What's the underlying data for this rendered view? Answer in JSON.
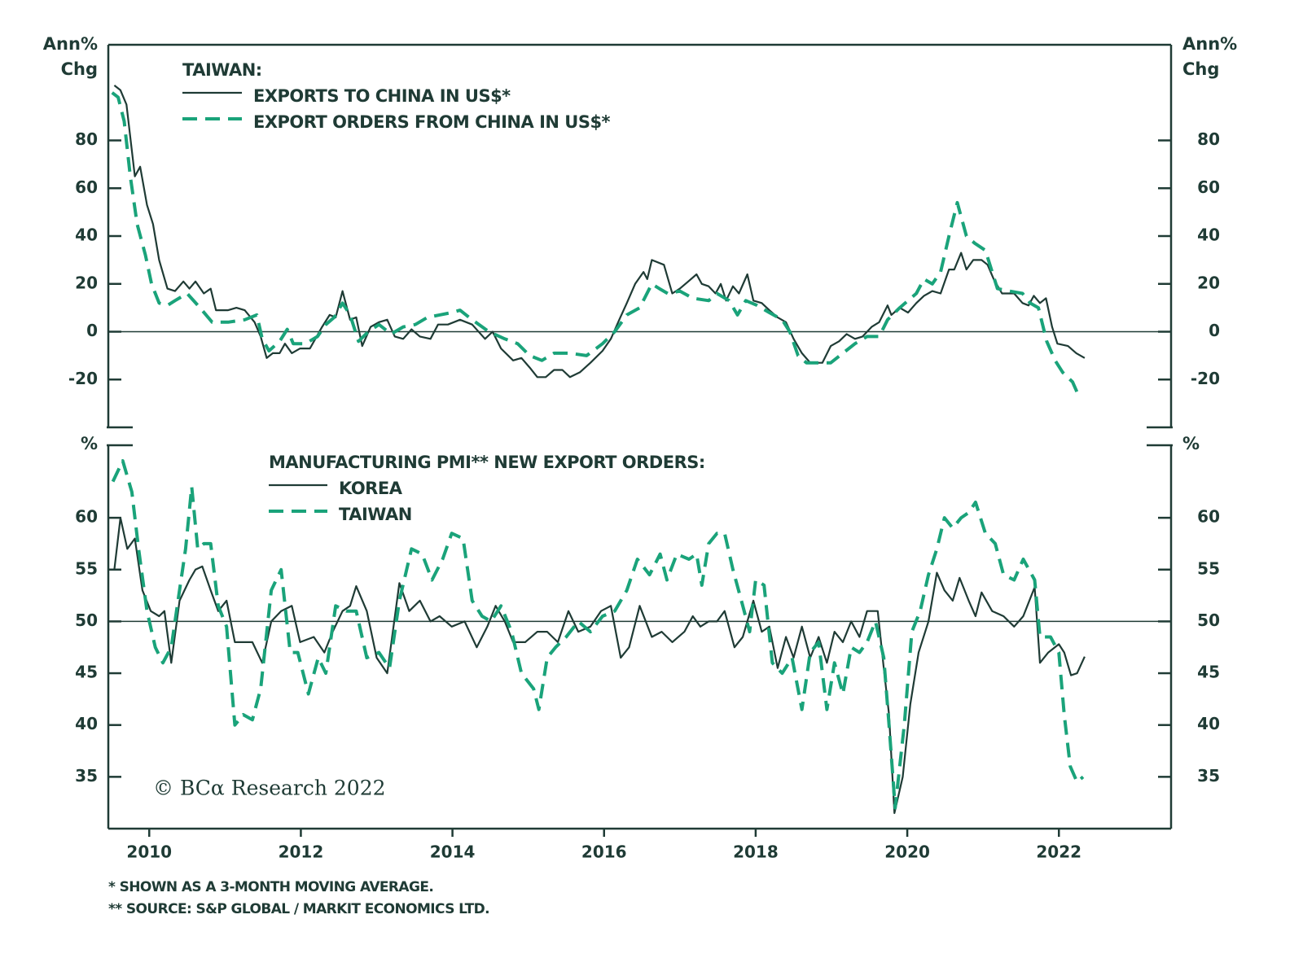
{
  "chart_data": [
    {
      "type": "line",
      "y_label_lines": [
        "Ann%",
        "Chg"
      ],
      "legend_title": "TAIWAN:",
      "xlim": [
        2009.46,
        2023.48
      ],
      "ylim": [
        -40,
        120
      ],
      "yticks": [
        -20,
        0,
        20,
        40,
        60,
        80
      ],
      "reference_line": 0,
      "series": [
        {
          "name": "EXPORTS TO CHINA IN US$*",
          "color": "#1f3b35",
          "dashed": false,
          "x": [
            2009.54,
            2009.62,
            2009.7,
            2009.81,
            2009.88,
            2009.97,
            2010.05,
            2010.13,
            2010.24,
            2010.34,
            2010.45,
            2010.53,
            2010.61,
            2010.72,
            2010.81,
            2010.88,
            2011.04,
            2011.15,
            2011.26,
            2011.39,
            2011.47,
            2011.55,
            2011.63,
            2011.72,
            2011.79,
            2011.88,
            2011.99,
            2012.12,
            2012.28,
            2012.38,
            2012.46,
            2012.55,
            2012.65,
            2012.73,
            2012.81,
            2012.92,
            2013.03,
            2013.14,
            2013.24,
            2013.35,
            2013.46,
            2013.57,
            2013.71,
            2013.81,
            2013.94,
            2014.1,
            2014.26,
            2014.43,
            2014.53,
            2014.64,
            2014.8,
            2014.91,
            2015.02,
            2015.12,
            2015.23,
            2015.34,
            2015.45,
            2015.55,
            2015.68,
            2015.82,
            2015.98,
            2016.09,
            2016.2,
            2016.3,
            2016.41,
            2016.52,
            2016.57,
            2016.63,
            2016.79,
            2016.9,
            2017.0,
            2017.11,
            2017.22,
            2017.29,
            2017.38,
            2017.47,
            2017.54,
            2017.61,
            2017.7,
            2017.78,
            2017.89,
            2017.97,
            2018.08,
            2018.18,
            2018.29,
            2018.4,
            2018.5,
            2018.61,
            2018.72,
            2018.88,
            2018.99,
            2019.1,
            2019.2,
            2019.31,
            2019.41,
            2019.53,
            2019.63,
            2019.74,
            2019.79,
            2019.9,
            2020.01,
            2020.12,
            2020.22,
            2020.33,
            2020.44,
            2020.55,
            2020.62,
            2020.71,
            2020.78,
            2020.87,
            2020.98,
            2021.06,
            2021.14,
            2021.25,
            2021.41,
            2021.52,
            2021.6,
            2021.67,
            2021.75,
            2021.83,
            2021.91,
            2021.98,
            2022.12,
            2022.23,
            2022.34
          ],
          "values": [
            103,
            101,
            95,
            65,
            69,
            53,
            45,
            30,
            18,
            17,
            21,
            18,
            21,
            16,
            18,
            9,
            9,
            10,
            9,
            4,
            -2,
            -11,
            -9,
            -9,
            -5,
            -9,
            -7,
            -7,
            2,
            7,
            6,
            17,
            5,
            6,
            -6,
            2,
            4,
            5,
            -2,
            -3,
            1,
            -2,
            -3,
            3,
            3,
            5,
            3,
            -3,
            0,
            -7,
            -12,
            -11,
            -15,
            -19,
            -19,
            -16,
            -16,
            -19,
            -17,
            -13,
            -8,
            -3,
            5,
            12,
            20,
            25,
            22,
            30,
            28,
            16,
            18,
            21,
            24,
            20,
            19,
            16,
            20,
            13,
            19,
            16,
            24,
            13,
            12,
            9,
            6,
            4,
            -3,
            -9,
            -13,
            -13,
            -6,
            -4,
            -1,
            -3,
            -2,
            2,
            4,
            11,
            7,
            10,
            8,
            12,
            15,
            17,
            16,
            26,
            26,
            33,
            26,
            30,
            30,
            28,
            22,
            16,
            16,
            12,
            11,
            15,
            12,
            14,
            2,
            -5,
            -6,
            -9,
            -11
          ]
        },
        {
          "name": "EXPORT ORDERS FROM CHINA IN US$*",
          "color": "#1aa37a",
          "dashed": true,
          "x": [
            2009.51,
            2009.59,
            2009.67,
            2009.75,
            2009.84,
            2009.95,
            2010.03,
            2010.13,
            2010.24,
            2010.34,
            2010.5,
            2010.67,
            2010.83,
            2011.04,
            2011.26,
            2011.42,
            2011.49,
            2011.58,
            2011.72,
            2011.82,
            2011.9,
            2012.06,
            2012.22,
            2012.33,
            2012.44,
            2012.55,
            2012.65,
            2012.76,
            2012.89,
            2013.03,
            2013.19,
            2013.35,
            2013.51,
            2013.67,
            2013.83,
            2013.99,
            2014.1,
            2014.26,
            2014.48,
            2014.69,
            2014.86,
            2015.02,
            2015.18,
            2015.34,
            2015.55,
            2015.77,
            2015.98,
            2016.14,
            2016.3,
            2016.47,
            2016.63,
            2016.73,
            2016.84,
            2017.0,
            2017.17,
            2017.38,
            2017.49,
            2017.65,
            2017.76,
            2017.87,
            2018.02,
            2018.18,
            2018.35,
            2018.45,
            2018.56,
            2018.67,
            2018.83,
            2018.99,
            2019.15,
            2019.31,
            2019.47,
            2019.63,
            2019.74,
            2019.9,
            2020.12,
            2020.22,
            2020.33,
            2020.44,
            2020.55,
            2020.66,
            2020.78,
            2020.89,
            2021.03,
            2021.19,
            2021.35,
            2021.52,
            2021.62,
            2021.73,
            2021.84,
            2021.95,
            2022.05,
            2022.18,
            2022.25
          ],
          "values": [
            100,
            98,
            88,
            65,
            45,
            32,
            20,
            12,
            11,
            13,
            16,
            10,
            4,
            4,
            5,
            7,
            -3,
            -8,
            -4,
            1,
            -5,
            -5,
            -2,
            3,
            6,
            12,
            7,
            -4,
            0,
            3,
            -1,
            2,
            3,
            6,
            7,
            8,
            9,
            5,
            0,
            -3,
            -5,
            -10,
            -12,
            -9,
            -9,
            -10,
            -5,
            0,
            7,
            10,
            20,
            18,
            16,
            17,
            14,
            13,
            16,
            13,
            7,
            13,
            11,
            8,
            5,
            0,
            -10,
            -13,
            -13,
            -13,
            -9,
            -5,
            -2,
            -2,
            5,
            10,
            16,
            22,
            20,
            25,
            40,
            54,
            40,
            37,
            34,
            18,
            17,
            16,
            12,
            10,
            -4,
            -12,
            -17,
            -21,
            -26
          ]
        }
      ]
    },
    {
      "type": "line",
      "y_label_lines": [
        "%"
      ],
      "legend_title": "MANUFACTURING PMI** NEW EXPORT ORDERS:",
      "xlim": [
        2009.46,
        2023.48
      ],
      "xticks": [
        2010,
        2012,
        2014,
        2016,
        2018,
        2020,
        2022
      ],
      "ylim": [
        30,
        67
      ],
      "yticks": [
        35,
        40,
        45,
        50,
        55,
        60
      ],
      "reference_line": 50,
      "series": [
        {
          "name": "KOREA",
          "color": "#1f3b35",
          "dashed": false,
          "x": [
            2009.54,
            2009.62,
            2009.71,
            2009.81,
            2009.91,
            2010.02,
            2010.13,
            2010.2,
            2010.29,
            2010.4,
            2010.53,
            2010.61,
            2010.7,
            2010.81,
            2010.91,
            2011.02,
            2011.13,
            2011.24,
            2011.36,
            2011.49,
            2011.61,
            2011.74,
            2011.88,
            2011.99,
            2012.17,
            2012.31,
            2012.42,
            2012.55,
            2012.65,
            2012.73,
            2012.87,
            2013.0,
            2013.14,
            2013.3,
            2013.43,
            2013.57,
            2013.71,
            2013.83,
            2013.99,
            2014.16,
            2014.32,
            2014.46,
            2014.57,
            2014.69,
            2014.8,
            2014.96,
            2015.12,
            2015.25,
            2015.39,
            2015.53,
            2015.66,
            2015.82,
            2015.96,
            2016.09,
            2016.22,
            2016.33,
            2016.47,
            2016.63,
            2016.76,
            2016.9,
            2017.06,
            2017.17,
            2017.27,
            2017.38,
            2017.49,
            2017.59,
            2017.72,
            2017.83,
            2017.97,
            2018.08,
            2018.18,
            2018.29,
            2018.4,
            2018.5,
            2018.61,
            2018.72,
            2018.83,
            2018.94,
            2019.04,
            2019.15,
            2019.26,
            2019.37,
            2019.47,
            2019.61,
            2019.69,
            2019.76,
            2019.83,
            2019.94,
            2020.04,
            2020.15,
            2020.28,
            2020.39,
            2020.49,
            2020.6,
            2020.69,
            2020.81,
            2020.9,
            2020.98,
            2021.12,
            2021.27,
            2021.41,
            2021.53,
            2021.68,
            2021.75,
            2021.86,
            2022.0,
            2022.07,
            2022.16,
            2022.24,
            2022.34
          ],
          "values": [
            55,
            60,
            57,
            58,
            53,
            51,
            50.5,
            51,
            46,
            52,
            54,
            55,
            55.3,
            53,
            51,
            52,
            48,
            48,
            48,
            46,
            50,
            51,
            51.5,
            48,
            48.5,
            47,
            49,
            51,
            51.5,
            53.4,
            51,
            46.5,
            45,
            53.7,
            51,
            52,
            50,
            50.5,
            49.5,
            50,
            47.5,
            49.5,
            51.5,
            50,
            48,
            48,
            49,
            49,
            48,
            51,
            49,
            49.5,
            51,
            51.5,
            46.5,
            47.5,
            51.5,
            48.5,
            49,
            48,
            49,
            50.5,
            49.5,
            50,
            50,
            51,
            47.5,
            48.5,
            52,
            49,
            49.5,
            45.5,
            48.5,
            46.5,
            49.5,
            46.5,
            48.5,
            46,
            49,
            48,
            50,
            48.5,
            51,
            51,
            45.5,
            41,
            31.5,
            35,
            42,
            47,
            50,
            54.7,
            53,
            52,
            54.2,
            52,
            50.5,
            52.8,
            51,
            50.5,
            49.5,
            50.5,
            53.3,
            46,
            47,
            47.8,
            47,
            44.8,
            45,
            46.6
          ]
        },
        {
          "name": "TAIWAN",
          "color": "#1aa37a",
          "dashed": true,
          "x": [
            2009.52,
            2009.65,
            2009.77,
            2009.86,
            2009.97,
            2010.08,
            2010.18,
            2010.29,
            2010.38,
            2010.48,
            2010.56,
            2010.64,
            2010.72,
            2010.81,
            2010.91,
            2011.02,
            2011.13,
            2011.24,
            2011.36,
            2011.47,
            2011.61,
            2011.74,
            2011.86,
            2011.96,
            2012.1,
            2012.23,
            2012.33,
            2012.46,
            2012.6,
            2012.73,
            2012.87,
            2013.03,
            2013.17,
            2013.3,
            2013.46,
            2013.6,
            2013.73,
            2013.87,
            2013.99,
            2014.14,
            2014.26,
            2014.39,
            2014.51,
            2014.64,
            2014.78,
            2014.91,
            2015.07,
            2015.14,
            2015.25,
            2015.36,
            2015.5,
            2015.66,
            2015.82,
            2015.98,
            2016.14,
            2016.3,
            2016.44,
            2016.6,
            2016.74,
            2016.83,
            2016.96,
            2017.12,
            2017.22,
            2017.29,
            2017.38,
            2017.49,
            2017.59,
            2017.7,
            2017.83,
            2017.92,
            2018.0,
            2018.11,
            2018.22,
            2018.35,
            2018.48,
            2018.61,
            2018.72,
            2018.83,
            2018.94,
            2019.04,
            2019.15,
            2019.26,
            2019.37,
            2019.47,
            2019.58,
            2019.69,
            2019.76,
            2019.84,
            2019.96,
            2020.06,
            2020.17,
            2020.28,
            2020.39,
            2020.49,
            2020.6,
            2020.71,
            2020.81,
            2020.9,
            2021.03,
            2021.16,
            2021.27,
            2021.41,
            2021.53,
            2021.68,
            2021.75,
            2021.89,
            2022.0,
            2022.07,
            2022.15,
            2022.24,
            2022.32
          ],
          "values": [
            63.5,
            65.5,
            62.5,
            57,
            51,
            47.5,
            46,
            47.5,
            52,
            57,
            63,
            57,
            57.5,
            57.5,
            51.5,
            49.5,
            40,
            41,
            40.5,
            43.5,
            53,
            55,
            47,
            47,
            43,
            46.5,
            45,
            51.5,
            51,
            51,
            46.5,
            47,
            45.5,
            52,
            57,
            56.5,
            54,
            56,
            58.5,
            58,
            52,
            50.5,
            50,
            51.5,
            49,
            45,
            43.5,
            41.5,
            46.5,
            47.5,
            48.5,
            50,
            49,
            50.5,
            51,
            53,
            56,
            54.5,
            56.5,
            54,
            56.5,
            56,
            56.5,
            53.5,
            57.5,
            58.5,
            58.5,
            55,
            51.5,
            49,
            54,
            53.5,
            46,
            45,
            46.5,
            41.5,
            47,
            48,
            41.5,
            46,
            43,
            47.5,
            47,
            48,
            50,
            46.5,
            40,
            32,
            40,
            49,
            51,
            54.5,
            57,
            60,
            59,
            60,
            60.5,
            61.5,
            58.5,
            57.5,
            54.5,
            54,
            56,
            54,
            48.5,
            48.5,
            47,
            41,
            36,
            34.5,
            35
          ]
        }
      ]
    }
  ],
  "copyright": "© BCα Research 2022",
  "footnotes": [
    "* SHOWN AS A 3-MONTH MOVING AVERAGE.",
    "** SOURCE: S&P GLOBAL / MARKIT ECONOMICS LTD."
  ]
}
